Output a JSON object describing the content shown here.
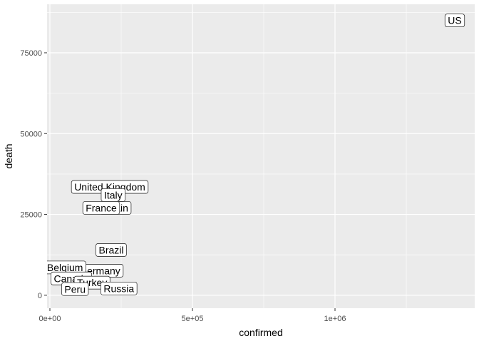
{
  "chart_data": {
    "type": "scatter",
    "title": "",
    "xlabel": "confirmed",
    "ylabel": "death",
    "xlim": [
      -10000,
      1490000
    ],
    "ylim": [
      -4000,
      90000
    ],
    "x_ticks": [
      {
        "value": 0,
        "label": "0e+00"
      },
      {
        "value": 500000,
        "label": "5e+05"
      },
      {
        "value": 1000000,
        "label": "1e+06"
      }
    ],
    "x_minor_ticks": [
      250000,
      750000,
      1250000
    ],
    "y_ticks": [
      {
        "value": 0,
        "label": "0"
      },
      {
        "value": 25000,
        "label": "25000"
      },
      {
        "value": 50000,
        "label": "50000"
      },
      {
        "value": 75000,
        "label": "75000"
      }
    ],
    "y_minor_ticks": [
      12500,
      37500,
      62500,
      87500
    ],
    "grid": true,
    "legend": "none",
    "colors": {
      "panel": "#ebebeb",
      "grid_major": "#ffffff",
      "label_fill": "#ffffff",
      "label_border": "#333333",
      "tick_text": "#4d4d4d"
    },
    "points": [
      {
        "label": "US",
        "x": 1420000,
        "y": 85000
      },
      {
        "label": "United Kingdom",
        "x": 210000,
        "y": 33500
      },
      {
        "label": "Spain",
        "x": 230000,
        "y": 27000
      },
      {
        "label": "Italy",
        "x": 222000,
        "y": 31000
      },
      {
        "label": "France",
        "x": 180000,
        "y": 27000
      },
      {
        "label": "Brazil",
        "x": 215000,
        "y": 14000
      },
      {
        "label": "Germany",
        "x": 175000,
        "y": 7600
      },
      {
        "label": "Belgium",
        "x": 53000,
        "y": 8600
      },
      {
        "label": "Canada",
        "x": 75000,
        "y": 5200
      },
      {
        "label": "Turkey",
        "x": 148000,
        "y": 3900
      },
      {
        "label": "Russia",
        "x": 242000,
        "y": 2100
      },
      {
        "label": "Peru",
        "x": 88000,
        "y": 1900
      }
    ]
  }
}
